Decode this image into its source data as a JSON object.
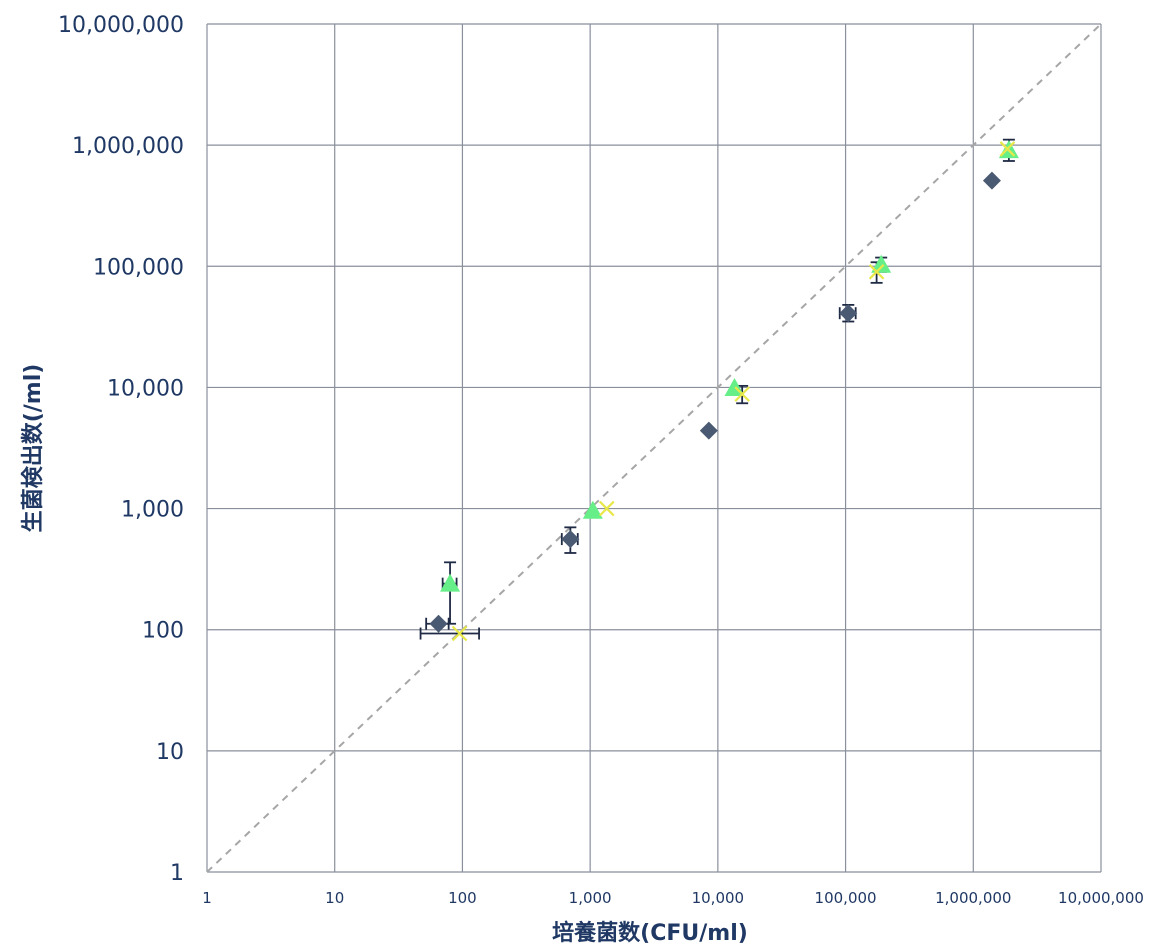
{
  "chart_data": {
    "type": "scatter",
    "title": "",
    "xlabel": "培養菌数(CFU/ml)",
    "ylabel": "生菌検出数(/ml)",
    "x_scale": "log",
    "y_scale": "log",
    "xlim": [
      1,
      10000000
    ],
    "ylim": [
      1,
      10000000
    ],
    "x_ticks": [
      1,
      10,
      100,
      1000,
      10000,
      100000,
      1000000,
      10000000
    ],
    "x_tick_labels": [
      "1",
      "10",
      "100",
      "1,000",
      "10,000",
      "100,000",
      "1,000,000",
      "10,000,000"
    ],
    "y_ticks": [
      1,
      10,
      100,
      1000,
      10000,
      100000,
      1000000,
      10000000
    ],
    "y_tick_labels": [
      "1",
      "10",
      "100",
      "1,000",
      "10,000",
      "100,000",
      "1,000,000",
      "10,000,000"
    ],
    "grid": true,
    "legend": "none",
    "reference_line": {
      "style": "dashed",
      "color": "#a6a6a6",
      "from": [
        1,
        1
      ],
      "to": [
        10000000,
        10000000
      ]
    },
    "series": [
      {
        "marker": "diamond",
        "color": "#4a5a72",
        "points": [
          {
            "x": 65,
            "y": 112,
            "xerr": [
              52,
              78
            ],
            "yerr": null
          },
          {
            "x": 700,
            "y": 560,
            "xerr": [
              600,
              800
            ],
            "yerr": [
              430,
              700
            ]
          },
          {
            "x": 8500,
            "y": 4400,
            "xerr": null,
            "yerr": null
          },
          {
            "x": 105000,
            "y": 41000,
            "xerr": [
              90000,
              120000
            ],
            "yerr": [
              35000,
              48000
            ]
          },
          {
            "x": 1400000,
            "y": 510000,
            "xerr": null,
            "yerr": null
          }
        ]
      },
      {
        "marker": "triangle",
        "color": "#66ee88",
        "points": [
          {
            "x": 80,
            "y": 240,
            "xerr": [
              70,
              90
            ],
            "yerr": [
              112,
              360
            ]
          },
          {
            "x": 1050,
            "y": 960,
            "xerr": null,
            "yerr": null
          },
          {
            "x": 13500,
            "y": 9900,
            "xerr": null,
            "yerr": null
          },
          {
            "x": 190000,
            "y": 103000,
            "xerr": null,
            "yerr": [
              90000,
              118000
            ]
          },
          {
            "x": 1900000,
            "y": 910000,
            "xerr": null,
            "yerr": [
              740000,
              1110000
            ]
          }
        ]
      },
      {
        "marker": "x",
        "color": "#e8e84a",
        "points": [
          {
            "x": 95,
            "y": 93,
            "xerr": [
              47,
              135
            ],
            "yerr": null
          },
          {
            "x": 1350,
            "y": 1000,
            "xerr": null,
            "yerr": null
          },
          {
            "x": 15500,
            "y": 8800,
            "xerr": null,
            "yerr": [
              7400,
              10300
            ]
          },
          {
            "x": 175000,
            "y": 90000,
            "xerr": null,
            "yerr": [
              73000,
              108000
            ]
          },
          {
            "x": 1850000,
            "y": 930000,
            "xerr": null,
            "yerr": null
          }
        ]
      }
    ]
  }
}
